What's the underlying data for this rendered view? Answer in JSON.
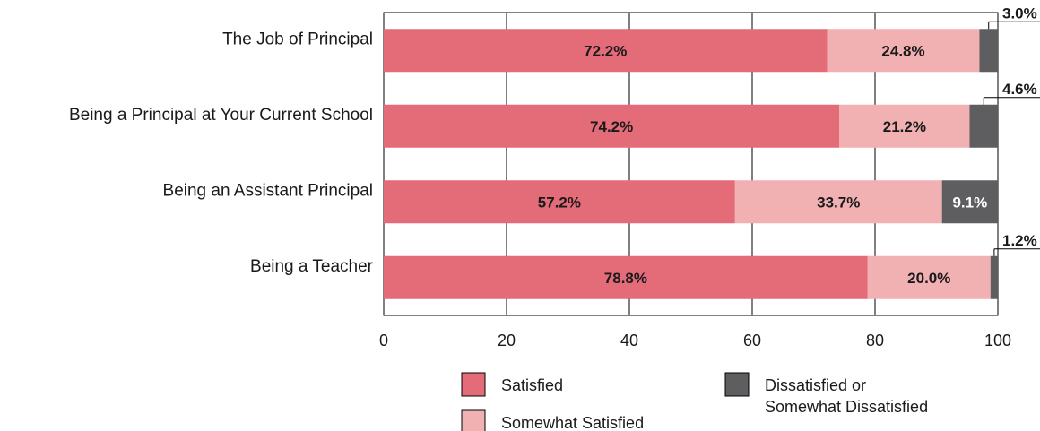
{
  "chart_data": {
    "type": "bar",
    "orientation": "horizontal",
    "stacked": true,
    "categories": [
      "The Job of Principal",
      "Being a Principal at Your Current School",
      "Being an Assistant Principal",
      "Being a Teacher"
    ],
    "series": [
      {
        "name": "Satisfied",
        "values": [
          72.2,
          74.2,
          57.2,
          78.8
        ],
        "color": "#e46b78",
        "label_color": "#1a1a1a"
      },
      {
        "name": "Somewhat Satisfied",
        "values": [
          24.8,
          21.2,
          33.7,
          20.0
        ],
        "color": "#f1b0b2",
        "label_color": "#1a1a1a"
      },
      {
        "name": "Dissatisfied or Somewhat Dissatisfied",
        "values": [
          3.0,
          4.6,
          9.1,
          1.2
        ],
        "color": "#5e5e60",
        "label_color": "#ffffff"
      }
    ],
    "value_labels": [
      [
        "72.2%",
        "24.8%",
        "3.0%"
      ],
      [
        "74.2%",
        "21.2%",
        "4.6%"
      ],
      [
        "57.2%",
        "33.7%",
        "9.1%"
      ],
      [
        "78.8%",
        "20.0%",
        "1.2%"
      ]
    ],
    "callout_above_bar": [
      true,
      true,
      false,
      true
    ],
    "xlim": [
      0,
      100
    ],
    "xticks": [
      0,
      20,
      40,
      60,
      80,
      100
    ],
    "xtick_labels": [
      "0",
      "20",
      "40",
      "60",
      "80",
      "100"
    ],
    "grid": true,
    "title": "",
    "xlabel": "",
    "ylabel": "",
    "legend": {
      "placement": "bottom",
      "items": [
        {
          "label_lines": [
            "Satisfied"
          ],
          "color": "#e46b78"
        },
        {
          "label_lines": [
            "Somewhat Satisfied"
          ],
          "color": "#f1b0b2"
        },
        {
          "label_lines": [
            "Dissatisfied or",
            "Somewhat Dissatisfied"
          ],
          "color": "#5e5e60"
        }
      ]
    }
  }
}
